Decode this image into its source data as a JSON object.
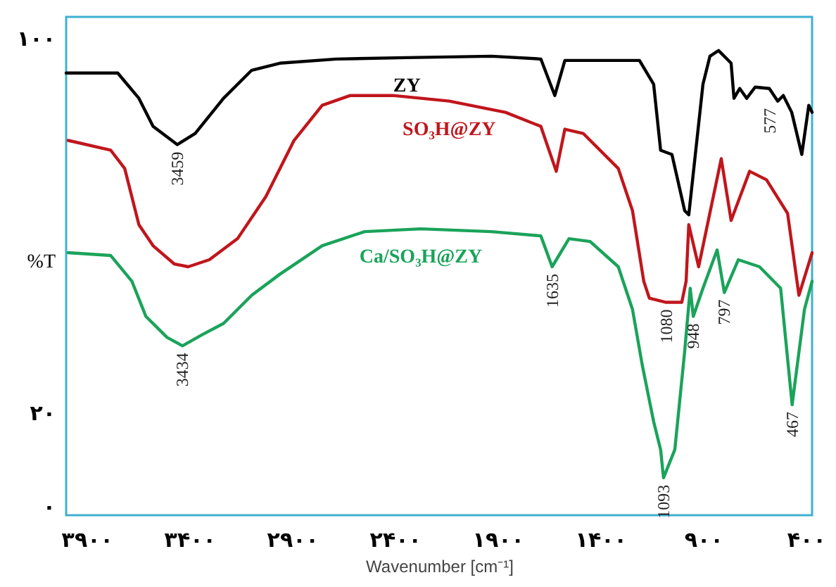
{
  "chart_data": {
    "type": "line",
    "xlabel": "Wavenumber [cm⁻¹]",
    "ylabel": "%T",
    "xlim": [
      4000,
      370
    ],
    "ylim": [
      -2,
      104.5
    ],
    "xticks": [
      {
        "value": 3900,
        "label": "۳۹۰۰"
      },
      {
        "value": 3400,
        "label": "۳۴۰۰"
      },
      {
        "value": 2900,
        "label": "۲۹۰۰"
      },
      {
        "value": 2400,
        "label": "۲۴۰۰"
      },
      {
        "value": 1900,
        "label": "۱۹۰۰"
      },
      {
        "value": 1400,
        "label": "۱۴۰۰"
      },
      {
        "value": 900,
        "label": "۹۰۰"
      },
      {
        "value": 400,
        "label": "۴۰۰"
      }
    ],
    "yticks": [
      {
        "value": 100,
        "label": "۱۰۰"
      },
      {
        "value": 20,
        "label": "۲۰"
      },
      {
        "value": 0,
        "label": "۰"
      }
    ],
    "grid": false,
    "line_style": "solid",
    "marker": "none",
    "series": [
      {
        "name": "ZY",
        "color": "#000000",
        "x": [
          4000,
          3749,
          3646,
          3577,
          3459,
          3372,
          3234,
          3097,
          2960,
          2685,
          2342,
          1930,
          1690,
          1622,
          1573,
          1210,
          1141,
          1107,
          1052,
          990,
          970,
          901,
          867,
          825,
          764,
          750,
          722,
          688,
          647,
          578,
          537,
          510,
          469,
          420,
          386,
          370
        ],
        "values": [
          92.5,
          92.5,
          87.1,
          81.1,
          77.2,
          79.6,
          87.1,
          93.1,
          94.6,
          95.5,
          95.8,
          96.1,
          95.5,
          87.7,
          95.2,
          95.2,
          90.1,
          76.0,
          75.1,
          63.1,
          62.2,
          90.1,
          96.1,
          97.3,
          94.6,
          87.1,
          89.2,
          87.1,
          89.5,
          89.2,
          86.5,
          87.7,
          84.1,
          75.1,
          85.6,
          84.1
        ]
      },
      {
        "name": "SO₃H@ZY",
        "color": "#c0161c",
        "x": [
          3990,
          3783,
          3715,
          3646,
          3577,
          3474,
          3406,
          3303,
          3166,
          3028,
          2891,
          2754,
          2617,
          2411,
          2136,
          1862,
          1690,
          1615,
          1573,
          1484,
          1313,
          1244,
          1189,
          1162,
          1080,
          1004,
          983,
          970,
          922,
          812,
          764,
          674,
          592,
          489,
          434,
          370
        ],
        "values": [
          78.1,
          76.0,
          72.1,
          60.1,
          55.6,
          51.7,
          51.1,
          52.6,
          57.1,
          66.1,
          78.1,
          85.6,
          87.7,
          87.7,
          86.5,
          84.1,
          81.1,
          71.5,
          80.5,
          79.6,
          72.1,
          63.1,
          48.0,
          44.4,
          43.5,
          43.5,
          48.0,
          60.1,
          51.1,
          74.2,
          61.0,
          71.5,
          69.7,
          62.5,
          45.0,
          54.1
        ]
      },
      {
        "name": "Ca/SO₃H@ZY",
        "color": "#1aa35a",
        "x": [
          3990,
          3783,
          3680,
          3612,
          3509,
          3434,
          3337,
          3234,
          3097,
          2960,
          2754,
          2548,
          2274,
          1930,
          1690,
          1635,
          1553,
          1450,
          1313,
          1244,
          1196,
          1141,
          1107,
          1093,
          1038,
          990,
          963,
          948,
          901,
          832,
          797,
          729,
          626,
          523,
          467,
          407,
          370
        ],
        "values": [
          54.1,
          53.5,
          48.0,
          40.5,
          36.0,
          34.2,
          36.6,
          39.0,
          45.0,
          49.5,
          55.6,
          58.6,
          59.2,
          58.6,
          57.7,
          51.1,
          57.1,
          56.5,
          51.1,
          42.0,
          30.0,
          18.0,
          12.0,
          6.0,
          12.0,
          33.0,
          46.5,
          40.5,
          46.5,
          54.7,
          45.6,
          52.6,
          51.1,
          46.5,
          21.6,
          42.0,
          48.0
        ]
      }
    ],
    "annotations": [
      {
        "text": "3459",
        "x": 3459,
        "y": 77.2
      },
      {
        "text": "3434",
        "x": 3434,
        "y": 34.2
      },
      {
        "text": "1635",
        "x": 1635,
        "y": 51.1
      },
      {
        "text": "1080",
        "x": 1080,
        "y": 43.5
      },
      {
        "text": "948",
        "x": 948,
        "y": 40.5
      },
      {
        "text": "797",
        "x": 797,
        "y": 45.6
      },
      {
        "text": "577",
        "x": 577,
        "y": 86.5
      },
      {
        "text": "467",
        "x": 467,
        "y": 21.6
      },
      {
        "text": "1093",
        "x": 1093,
        "y": 6.0
      }
    ]
  }
}
